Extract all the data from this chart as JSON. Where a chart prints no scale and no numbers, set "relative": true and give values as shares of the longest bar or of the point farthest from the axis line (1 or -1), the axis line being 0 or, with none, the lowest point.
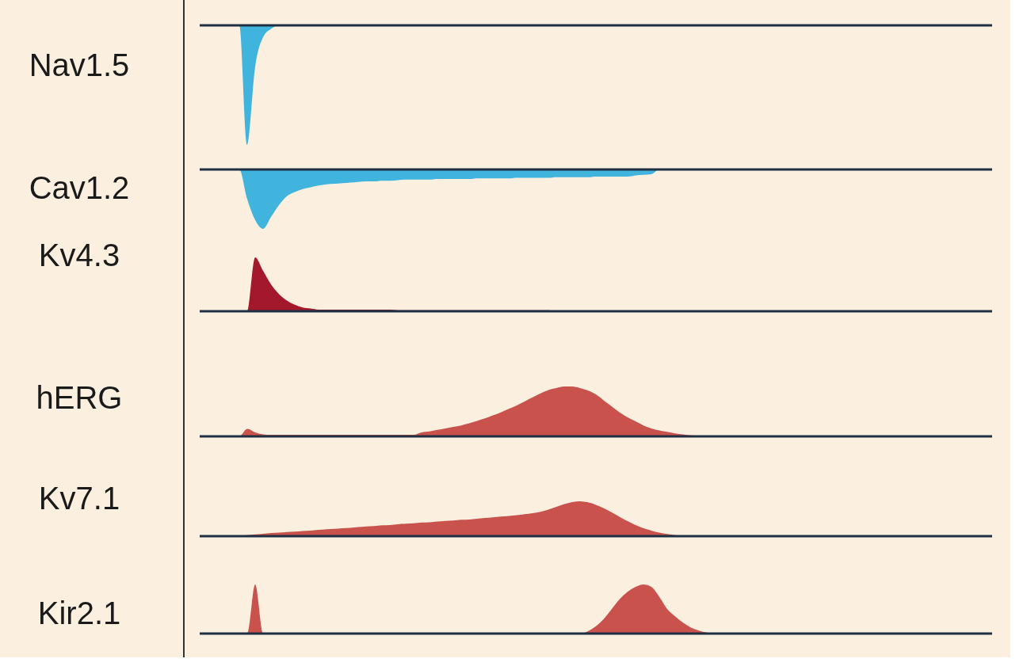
{
  "chart_data": [
    {
      "type": "area",
      "relative": true,
      "ylabel": "Nav1.5",
      "categories": [
        null,
        null,
        null,
        null,
        null,
        null,
        null,
        null,
        null,
        null,
        null,
        null,
        null,
        null,
        null,
        null,
        null,
        null,
        null,
        null,
        null,
        null,
        null,
        null,
        null,
        null,
        null,
        null,
        null,
        null,
        null,
        null,
        null,
        null,
        null,
        null,
        null,
        null,
        null,
        null,
        null,
        null,
        null,
        null,
        null,
        null,
        null,
        null,
        null,
        null,
        null,
        null,
        null,
        null,
        null,
        null,
        null,
        null,
        null,
        null,
        null,
        null,
        null,
        null,
        null,
        null,
        null,
        null,
        null,
        null,
        null,
        null,
        null,
        null,
        null,
        null,
        null,
        null,
        null,
        null,
        null,
        null,
        null,
        null,
        null,
        null,
        null,
        null,
        null,
        null,
        null,
        null,
        null,
        null,
        null,
        null,
        null,
        null,
        null,
        null,
        null
      ],
      "series": [
        {
          "color": "#41b4de",
          "values": [
            0,
            0,
            0,
            0,
            0,
            0,
            -1,
            -0.35,
            -0.1,
            -0.03,
            0,
            0,
            0,
            0,
            0,
            0,
            0,
            0,
            0,
            0,
            0,
            0,
            0,
            0,
            0,
            0,
            0,
            0,
            0,
            0,
            0,
            0,
            0,
            0,
            0,
            0,
            0,
            0,
            0,
            0,
            0,
            0,
            0,
            0,
            0,
            0,
            0,
            0,
            0,
            0,
            0,
            0,
            0,
            0,
            0,
            0,
            0,
            0,
            0,
            0,
            0,
            0,
            0,
            0,
            0,
            0,
            0,
            0,
            0,
            0,
            0,
            0,
            0,
            0,
            0,
            0,
            0,
            0,
            0,
            0,
            0,
            0,
            0,
            0,
            0,
            0,
            0,
            0,
            0,
            0,
            0,
            0,
            0,
            0,
            0,
            0,
            0,
            0,
            0,
            0,
            0
          ]
        }
      ]
    },
    {
      "type": "area",
      "relative": true,
      "ylabel": "Cav1.2",
      "categories": [
        null,
        null,
        null,
        null,
        null,
        null,
        null,
        null,
        null,
        null,
        null,
        null,
        null,
        null,
        null,
        null,
        null,
        null,
        null,
        null,
        null,
        null,
        null,
        null,
        null,
        null,
        null,
        null,
        null,
        null,
        null,
        null,
        null,
        null,
        null,
        null,
        null,
        null,
        null,
        null,
        null,
        null,
        null,
        null,
        null,
        null,
        null,
        null,
        null,
        null,
        null,
        null,
        null,
        null,
        null,
        null,
        null,
        null,
        null,
        null,
        null,
        null,
        null,
        null,
        null,
        null,
        null,
        null,
        null,
        null,
        null,
        null,
        null,
        null,
        null,
        null,
        null,
        null,
        null,
        null,
        null,
        null,
        null,
        null,
        null,
        null,
        null,
        null,
        null,
        null,
        null,
        null,
        null,
        null,
        null,
        null,
        null,
        null,
        null,
        null,
        null
      ],
      "series": [
        {
          "color": "#41b4de",
          "values": [
            0,
            0,
            0,
            0,
            0,
            0,
            -0.5,
            -0.85,
            -1,
            -0.8,
            -0.6,
            -0.45,
            -0.38,
            -0.33,
            -0.3,
            -0.27,
            -0.25,
            -0.24,
            -0.23,
            -0.22,
            -0.21,
            -0.2,
            -0.2,
            -0.19,
            -0.19,
            -0.18,
            -0.17,
            -0.17,
            -0.17,
            -0.17,
            -0.16,
            -0.16,
            -0.16,
            -0.16,
            -0.16,
            -0.15,
            -0.15,
            -0.15,
            -0.15,
            -0.15,
            -0.14,
            -0.14,
            -0.14,
            -0.14,
            -0.14,
            -0.13,
            -0.13,
            -0.13,
            -0.13,
            -0.13,
            -0.12,
            -0.12,
            -0.12,
            -0.12,
            -0.12,
            -0.1,
            -0.09,
            -0.08,
            0,
            0,
            0,
            0,
            0,
            0,
            0,
            0,
            0,
            0,
            0,
            0,
            0,
            0,
            0,
            0,
            0,
            0,
            0,
            0,
            0,
            0,
            0,
            0,
            0,
            0,
            0,
            0,
            0,
            0,
            0,
            0,
            0,
            0,
            0,
            0,
            0,
            0,
            0,
            0,
            0,
            0,
            0
          ]
        }
      ]
    },
    {
      "type": "area",
      "relative": true,
      "ylabel": "Kv4.3",
      "categories": [
        null,
        null,
        null,
        null,
        null,
        null,
        null,
        null,
        null,
        null,
        null,
        null,
        null,
        null,
        null,
        null,
        null,
        null,
        null,
        null,
        null,
        null,
        null,
        null,
        null,
        null,
        null,
        null,
        null,
        null,
        null,
        null,
        null,
        null,
        null,
        null,
        null,
        null,
        null,
        null,
        null,
        null,
        null,
        null,
        null,
        null,
        null,
        null,
        null,
        null,
        null,
        null,
        null,
        null,
        null,
        null,
        null,
        null,
        null,
        null,
        null,
        null,
        null,
        null,
        null,
        null,
        null,
        null,
        null,
        null,
        null,
        null,
        null,
        null,
        null,
        null,
        null,
        null,
        null,
        null,
        null,
        null,
        null,
        null,
        null,
        null,
        null,
        null,
        null,
        null,
        null,
        null,
        null,
        null,
        null,
        null,
        null,
        null,
        null,
        null,
        null
      ],
      "series": [
        {
          "color": "#a3182a",
          "values": [
            0,
            0,
            0,
            0,
            0,
            0,
            0,
            1,
            0.75,
            0.5,
            0.32,
            0.2,
            0.12,
            0.07,
            0.05,
            0.03,
            0.03,
            0.03,
            0.03,
            0.03,
            0.03,
            0.03,
            0.03,
            0.03,
            0.03,
            0.02,
            0.02,
            0.02,
            0.02,
            0.02,
            0.02,
            0.02,
            0.02,
            0.02,
            0.02,
            0.02,
            0.02,
            0.02,
            0.02,
            0.02,
            0.02,
            0.02,
            0.02,
            0.02,
            0.02,
            0,
            0,
            0,
            0,
            0,
            0,
            0,
            0,
            0,
            0,
            0,
            0,
            0,
            0,
            0,
            0,
            0,
            0,
            0,
            0,
            0,
            0,
            0,
            0,
            0,
            0,
            0,
            0,
            0,
            0,
            0,
            0,
            0,
            0,
            0,
            0,
            0,
            0,
            0,
            0,
            0,
            0,
            0,
            0,
            0,
            0,
            0,
            0,
            0,
            0,
            0,
            0,
            0,
            0,
            0,
            0
          ]
        }
      ]
    },
    {
      "type": "area",
      "relative": true,
      "ylabel": "hERG",
      "categories": [
        null,
        null,
        null,
        null,
        null,
        null,
        null,
        null,
        null,
        null,
        null,
        null,
        null,
        null,
        null,
        null,
        null,
        null,
        null,
        null,
        null,
        null,
        null,
        null,
        null,
        null,
        null,
        null,
        null,
        null,
        null,
        null,
        null,
        null,
        null,
        null,
        null,
        null,
        null,
        null,
        null,
        null,
        null,
        null,
        null,
        null,
        null,
        null,
        null,
        null,
        null,
        null,
        null,
        null,
        null,
        null,
        null,
        null,
        null,
        null,
        null,
        null,
        null,
        null,
        null,
        null,
        null,
        null,
        null,
        null,
        null,
        null,
        null,
        null,
        null,
        null,
        null,
        null,
        null,
        null,
        null,
        null,
        null,
        null,
        null,
        null,
        null,
        null,
        null,
        null,
        null,
        null,
        null,
        null,
        null,
        null,
        null,
        null,
        null,
        null,
        null
      ],
      "series": [
        {
          "color": "#c9524c",
          "values": [
            0,
            0,
            0,
            0,
            0,
            0,
            0.15,
            0.08,
            0.04,
            0.03,
            0.03,
            0.03,
            0.03,
            0.03,
            0.03,
            0.03,
            0.03,
            0.03,
            0.03,
            0.03,
            0.03,
            0.03,
            0.03,
            0.03,
            0.03,
            0.03,
            0.03,
            0.03,
            0.08,
            0.1,
            0.13,
            0.16,
            0.19,
            0.22,
            0.26,
            0.31,
            0.36,
            0.42,
            0.48,
            0.55,
            0.62,
            0.7,
            0.78,
            0.86,
            0.93,
            0.97,
            1,
            1,
            0.97,
            0.92,
            0.84,
            0.72,
            0.6,
            0.48,
            0.38,
            0.3,
            0.22,
            0.16,
            0.12,
            0.09,
            0.06,
            0.04,
            0.02,
            0.01,
            0,
            0,
            0,
            0,
            0,
            0,
            0,
            0,
            0,
            0,
            0,
            0,
            0,
            0,
            0,
            0,
            0,
            0,
            0,
            0,
            0,
            0,
            0,
            0,
            0,
            0,
            0,
            0,
            0,
            0,
            0,
            0,
            0,
            0,
            0,
            0,
            0
          ]
        }
      ]
    },
    {
      "type": "area",
      "relative": true,
      "ylabel": "Kv7.1",
      "categories": [
        null,
        null,
        null,
        null,
        null,
        null,
        null,
        null,
        null,
        null,
        null,
        null,
        null,
        null,
        null,
        null,
        null,
        null,
        null,
        null,
        null,
        null,
        null,
        null,
        null,
        null,
        null,
        null,
        null,
        null,
        null,
        null,
        null,
        null,
        null,
        null,
        null,
        null,
        null,
        null,
        null,
        null,
        null,
        null,
        null,
        null,
        null,
        null,
        null,
        null,
        null,
        null,
        null,
        null,
        null,
        null,
        null,
        null,
        null,
        null,
        null,
        null,
        null,
        null,
        null,
        null,
        null,
        null,
        null,
        null,
        null,
        null,
        null,
        null,
        null,
        null,
        null,
        null,
        null,
        null,
        null,
        null,
        null,
        null,
        null,
        null,
        null,
        null,
        null,
        null,
        null,
        null,
        null,
        null,
        null,
        null,
        null,
        null,
        null,
        null,
        null
      ],
      "series": [
        {
          "color": "#c9524c",
          "values": [
            0,
            0,
            0,
            0,
            0,
            0.01,
            0.03,
            0.05,
            0.07,
            0.09,
            0.1,
            0.12,
            0.13,
            0.15,
            0.16,
            0.18,
            0.2,
            0.21,
            0.23,
            0.24,
            0.26,
            0.28,
            0.29,
            0.31,
            0.32,
            0.34,
            0.36,
            0.37,
            0.39,
            0.4,
            0.42,
            0.44,
            0.45,
            0.47,
            0.48,
            0.5,
            0.52,
            0.54,
            0.56,
            0.58,
            0.6,
            0.63,
            0.66,
            0.7,
            0.76,
            0.84,
            0.92,
            0.98,
            1,
            0.97,
            0.9,
            0.8,
            0.68,
            0.55,
            0.43,
            0.32,
            0.23,
            0.16,
            0.1,
            0.06,
            0.03,
            0.01,
            0,
            0,
            0,
            0,
            0,
            0,
            0,
            0,
            0,
            0,
            0,
            0,
            0,
            0,
            0,
            0,
            0,
            0,
            0,
            0,
            0,
            0,
            0,
            0,
            0,
            0,
            0,
            0,
            0,
            0,
            0,
            0,
            0,
            0,
            0,
            0,
            0,
            0,
            0
          ]
        }
      ]
    },
    {
      "type": "area",
      "relative": true,
      "ylabel": "Kir2.1",
      "categories": [
        null,
        null,
        null,
        null,
        null,
        null,
        null,
        null,
        null,
        null,
        null,
        null,
        null,
        null,
        null,
        null,
        null,
        null,
        null,
        null,
        null,
        null,
        null,
        null,
        null,
        null,
        null,
        null,
        null,
        null,
        null,
        null,
        null,
        null,
        null,
        null,
        null,
        null,
        null,
        null,
        null,
        null,
        null,
        null,
        null,
        null,
        null,
        null,
        null,
        null,
        null,
        null,
        null,
        null,
        null,
        null,
        null,
        null,
        null,
        null,
        null,
        null,
        null,
        null,
        null,
        null,
        null,
        null,
        null,
        null,
        null,
        null,
        null,
        null,
        null,
        null,
        null,
        null,
        null,
        null,
        null,
        null,
        null,
        null,
        null,
        null,
        null,
        null,
        null,
        null,
        null,
        null,
        null,
        null,
        null,
        null,
        null,
        null,
        null,
        null,
        null
      ],
      "series": [
        {
          "color": "#c9524c",
          "values": [
            0,
            0,
            0,
            0,
            0,
            0,
            0,
            1,
            0,
            0,
            0,
            0,
            0,
            0,
            0,
            0,
            0,
            0,
            0,
            0,
            0,
            0,
            0,
            0,
            0,
            0,
            0,
            0,
            0,
            0,
            0,
            0,
            0,
            0,
            0,
            0,
            0,
            0,
            0,
            0,
            0,
            0,
            0,
            0,
            0,
            0,
            0,
            0,
            0,
            0.05,
            0.15,
            0.3,
            0.5,
            0.7,
            0.85,
            0.95,
            1,
            0.95,
            0.75,
            0.5,
            0.35,
            0.22,
            0.12,
            0.06,
            0.02,
            0,
            0,
            0,
            0,
            0,
            0,
            0,
            0,
            0,
            0,
            0,
            0,
            0,
            0,
            0,
            0,
            0,
            0,
            0,
            0,
            0,
            0,
            0,
            0,
            0,
            0,
            0,
            0,
            0,
            0,
            0,
            0,
            0,
            0,
            0,
            0
          ]
        }
      ]
    }
  ]
}
